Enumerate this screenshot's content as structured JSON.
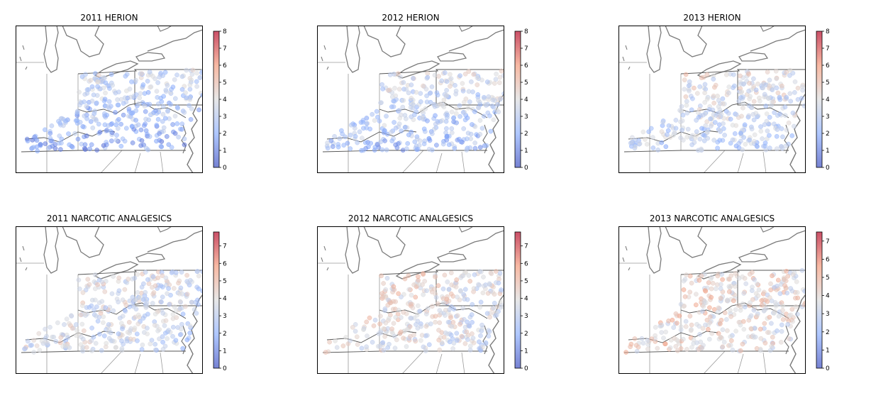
{
  "chart_data": [
    {
      "type": "scatter",
      "title": "2011 HERION",
      "colorbar": {
        "min": 0,
        "max": 8,
        "ticks": [
          0,
          1,
          2,
          3,
          4,
          5,
          6,
          7,
          8
        ],
        "colormap": "coolwarm"
      },
      "region_profile": {
        "north": 4.2,
        "west": 2.4,
        "south": 1.2,
        "east": 2.2
      }
    },
    {
      "type": "scatter",
      "title": "2012 HERION",
      "colorbar": {
        "min": 0,
        "max": 8,
        "ticks": [
          0,
          1,
          2,
          3,
          4,
          5,
          6,
          7,
          8
        ],
        "colormap": "coolwarm"
      },
      "region_profile": {
        "north": 4.6,
        "west": 2.8,
        "south": 1.8,
        "east": 2.6
      }
    },
    {
      "type": "scatter",
      "title": "2013 HERION",
      "colorbar": {
        "min": 0,
        "max": 8,
        "ticks": [
          0,
          1,
          2,
          3,
          4,
          5,
          6,
          7,
          8
        ],
        "colormap": "coolwarm"
      },
      "region_profile": {
        "north": 5.0,
        "west": 3.2,
        "south": 2.4,
        "east": 2.8
      }
    },
    {
      "type": "scatter",
      "title": "2011 NARCOTIC ANALGESICS",
      "colorbar": {
        "min": 0,
        "max": 7.8,
        "ticks": [
          0,
          1,
          2,
          3,
          4,
          5,
          6,
          7
        ],
        "colormap": "coolwarm"
      },
      "region_profile": {
        "north": 4.3,
        "west": 4.5,
        "south": 3.2,
        "east": 2.0
      }
    },
    {
      "type": "scatter",
      "title": "2012 NARCOTIC ANALGESICS",
      "colorbar": {
        "min": 0,
        "max": 7.8,
        "ticks": [
          0,
          1,
          2,
          3,
          4,
          5,
          6,
          7
        ],
        "colormap": "coolwarm"
      },
      "region_profile": {
        "north": 4.6,
        "west": 4.7,
        "south": 3.6,
        "east": 2.8
      }
    },
    {
      "type": "scatter",
      "title": "2013 NARCOTIC ANALGESICS",
      "colorbar": {
        "min": 0,
        "max": 7.5,
        "ticks": [
          0,
          1,
          2,
          3,
          4,
          5,
          6,
          7
        ],
        "colormap": "coolwarm"
      },
      "region_profile": {
        "north": 4.4,
        "west": 4.6,
        "south": 4.0,
        "east": 3.2
      }
    }
  ]
}
